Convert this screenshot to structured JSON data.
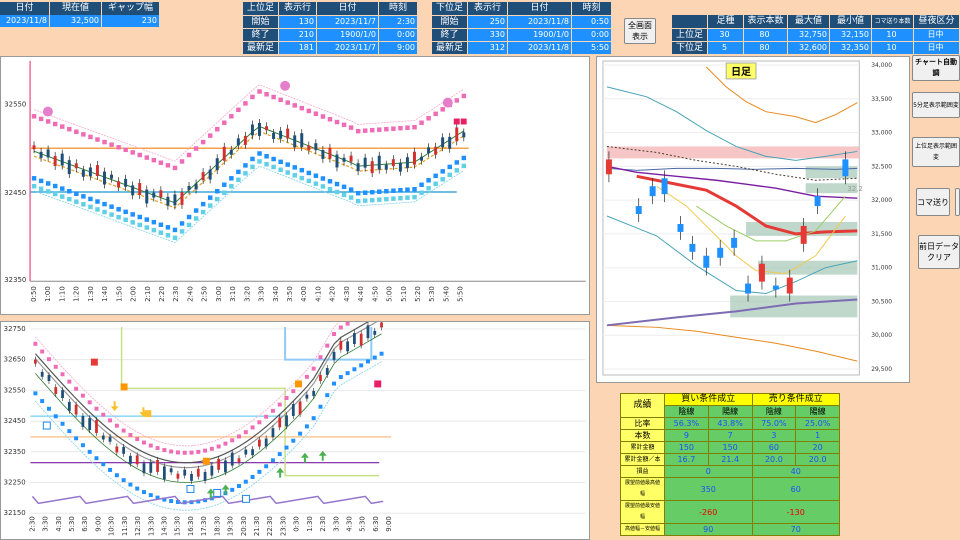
{
  "top_left": {
    "headers": [
      "日付",
      "現在値",
      "ギャップ幅"
    ],
    "values": [
      "2023/11/8",
      "32,500",
      "230"
    ]
  },
  "upper_table": {
    "headers": [
      "上位足",
      "表示行",
      "日付",
      "時刻"
    ],
    "rows": [
      [
        "開始",
        "130",
        "2023/11/7",
        "2:30"
      ],
      [
        "終了",
        "210",
        "1900/1/0",
        "0:00"
      ],
      [
        "最新足",
        "181",
        "2023/11/7",
        "9:00"
      ]
    ]
  },
  "lower_table": {
    "headers": [
      "下位足",
      "表示行",
      "日付",
      "時刻"
    ],
    "rows": [
      [
        "開始",
        "250",
        "2023/11/8",
        "0:50"
      ],
      [
        "終了",
        "330",
        "1900/1/0",
        "0:00"
      ],
      [
        "最新足",
        "312",
        "2023/11/8",
        "5:50"
      ]
    ]
  },
  "full_screen_button": "全画面表示",
  "right_table": {
    "headers": [
      "",
      "足種",
      "表示本数",
      "最大値",
      "最小値",
      "コマ送り本数",
      "昼夜区分"
    ],
    "rows": [
      [
        "上位足",
        "30",
        "80",
        "32,750",
        "32,150",
        "10",
        "日中"
      ],
      [
        "下位足",
        "5",
        "80",
        "32,600",
        "32,350",
        "10",
        "日中"
      ]
    ]
  },
  "buttons": {
    "auto_chart": "チャート自動調",
    "five_min": "5分足表示範囲変",
    "upper_range": "上位足表示範囲変",
    "step": "コマ送り",
    "clear": "前日データクリア"
  },
  "chart_upper": {
    "y_ticks": [
      "32550",
      "32450",
      "32350"
    ],
    "x_ticks": [
      "0:50",
      "1:00",
      "1:10",
      "1:20",
      "1:30",
      "1:40",
      "1:50",
      "2:00",
      "2:10",
      "2:20",
      "2:30",
      "2:40",
      "2:50",
      "3:00",
      "3:10",
      "3:20",
      "3:30",
      "3:40",
      "3:50",
      "4:00",
      "4:10",
      "4:20",
      "4:30",
      "4:40",
      "4:50",
      "5:00",
      "5:10",
      "5:20",
      "5:30",
      "5:40",
      "5:50"
    ]
  },
  "chart_lower": {
    "y_ticks": [
      "32750",
      "32650",
      "32550",
      "32450",
      "32350",
      "32250",
      "32150"
    ],
    "x_ticks": [
      "2:30",
      "3:30",
      "4:30",
      "5:30",
      "6:30",
      "9:00",
      "10:30",
      "11:30",
      "12:30",
      "13:30",
      "14:30",
      "15:30",
      "16:30",
      "17:30",
      "18:30",
      "19:30",
      "20:30",
      "21:30",
      "22:30",
      "23:30",
      "0:30",
      "1:30",
      "2:30",
      "3:30",
      "4:30",
      "5:30",
      "6:30",
      "9:00"
    ]
  },
  "chart_daily": {
    "title": "日足",
    "y_ticks": [
      "34,000",
      "33,500",
      "33,000",
      "32,500",
      "32,000",
      "31,500",
      "31,000",
      "30,500",
      "30,000",
      "29,500"
    ],
    "marker": "32,2"
  },
  "stats": {
    "title": "成績",
    "buy_header": "買い条件成立",
    "sell_header": "売り条件成立",
    "sub_headers": [
      "陰線",
      "陽線",
      "陰線",
      "陽線"
    ],
    "rows": [
      {
        "label": "比率",
        "values": [
          "56.3%",
          "43.8%",
          "75.0%",
          "25.0%"
        ]
      },
      {
        "label": "本数",
        "values": [
          "9",
          "7",
          "3",
          "1"
        ]
      },
      {
        "label": "累計金額",
        "values": [
          "150",
          "150",
          "60",
          "20"
        ]
      },
      {
        "label": "累計金額／本",
        "values": [
          "16.7",
          "21.4",
          "20.0",
          "20.0"
        ]
      }
    ],
    "rows2": [
      {
        "label": "損益",
        "buy": "0",
        "sell": "40"
      },
      {
        "label": "展望前値最高値幅",
        "buy": "350",
        "sell": "60"
      },
      {
        "label": "展望前値最安値幅",
        "buy": "-260",
        "sell": "-130"
      },
      {
        "label": "高値幅－安値幅",
        "buy": "90",
        "sell": "70"
      }
    ]
  }
}
